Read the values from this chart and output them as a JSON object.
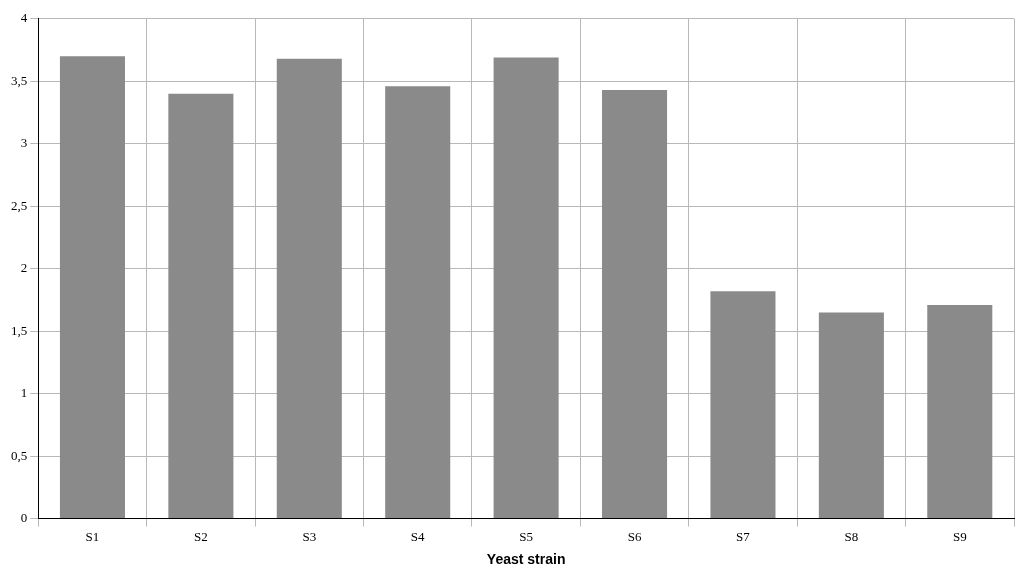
{
  "chart_data": {
    "type": "bar",
    "xlabel": "Yeast strain",
    "categories": [
      "S1",
      "S2",
      "S3",
      "S4",
      "S5",
      "S6",
      "S7",
      "S8",
      "S9"
    ],
    "values": [
      3.7,
      3.4,
      3.68,
      3.46,
      3.69,
      3.43,
      1.82,
      1.65,
      1.71
    ],
    "color": "#8a8a8a",
    "ylim": [
      0,
      4
    ],
    "yticks": [
      0,
      {
        "value": 0.5,
        "label": "0,5"
      },
      1,
      {
        "value": 1.5,
        "label": "1,5"
      },
      2,
      {
        "value": 2.5,
        "label": "2,5"
      },
      3,
      {
        "value": 3.5,
        "label": "3,5"
      },
      4
    ],
    "grid": true,
    "legend": false
  }
}
